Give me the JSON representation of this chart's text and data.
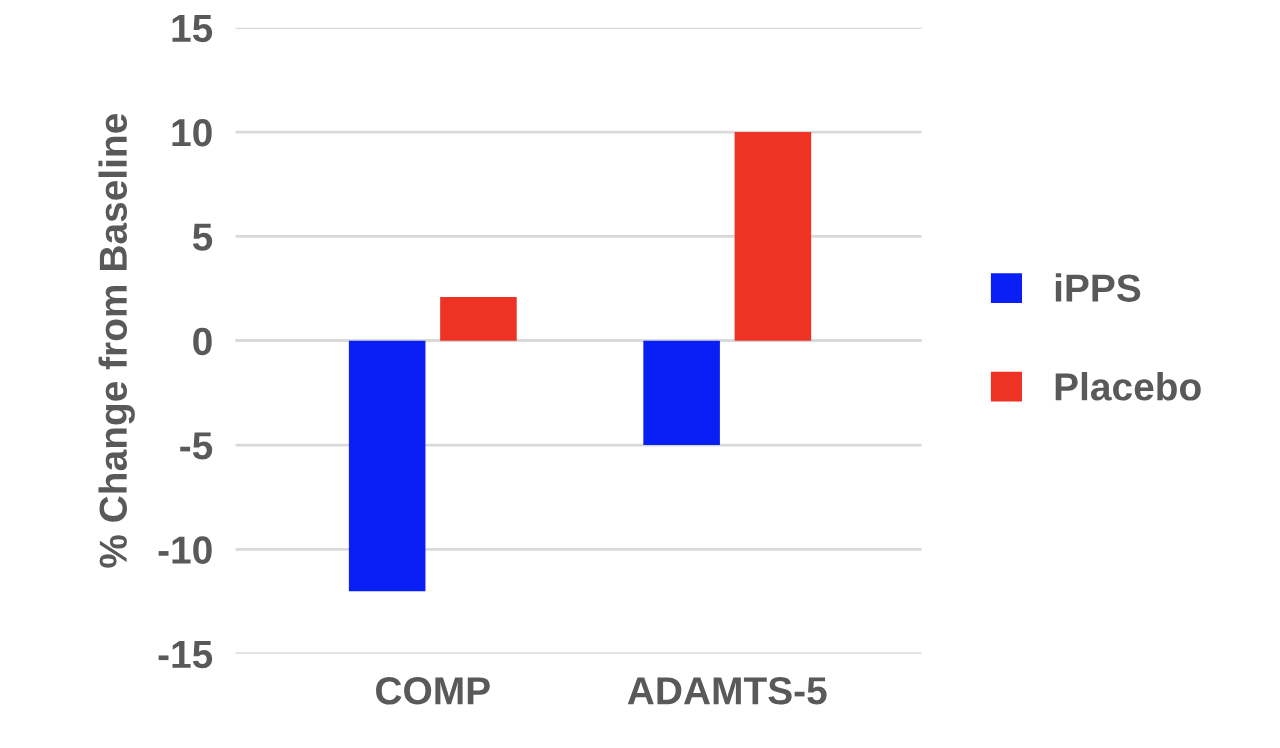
{
  "chart_data": {
    "type": "bar",
    "ylabel": "% Change from Baseline",
    "categories": [
      "COMP",
      "ADAMTS-5"
    ],
    "series": [
      {
        "name": "iPPS",
        "color": "#0a1ff5",
        "values": [
          -12,
          -5
        ]
      },
      {
        "name": "Placebo",
        "color": "#ee3224",
        "values": [
          2.1,
          10
        ]
      }
    ],
    "ylim": [
      -15,
      15
    ],
    "yticks": [
      -15,
      -10,
      -5,
      0,
      5,
      10,
      15
    ],
    "grid": "y",
    "legend": "right"
  }
}
